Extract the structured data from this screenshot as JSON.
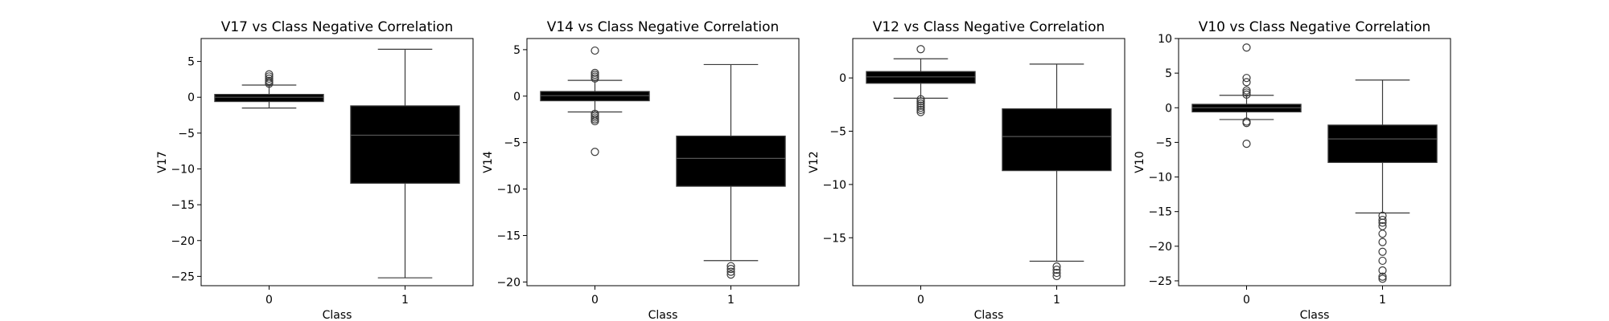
{
  "chart_data": [
    {
      "type": "box",
      "title": "V17 vs Class Negative Correlation",
      "xlabel": "Class",
      "ylabel": "V17",
      "categories": [
        "0",
        "1"
      ],
      "ylim": [
        -26.3,
        8.2
      ],
      "yticks": [
        5,
        0,
        -5,
        -10,
        -15,
        -20,
        -25
      ],
      "boxes": [
        {
          "category": "0",
          "whislo": -1.5,
          "q1": -0.6,
          "med": 0.0,
          "q3": 0.4,
          "whishi": 1.7,
          "fliers": [
            1.9,
            2.1,
            2.3,
            2.6,
            2.9,
            3.2
          ]
        },
        {
          "category": "1",
          "whislo": -25.2,
          "q1": -12.0,
          "med": -5.3,
          "q3": -1.2,
          "whishi": 6.7,
          "fliers": []
        }
      ]
    },
    {
      "type": "box",
      "title": "V14 vs Class Negative Correlation",
      "xlabel": "Class",
      "ylabel": "V14",
      "categories": [
        "0",
        "1"
      ],
      "ylim": [
        -20.4,
        6.2
      ],
      "yticks": [
        5,
        0,
        -5,
        -10,
        -15,
        -20
      ],
      "boxes": [
        {
          "category": "0",
          "whislo": -1.7,
          "q1": -0.5,
          "med": 0.05,
          "q3": 0.5,
          "whishi": 1.7,
          "fliers": [
            1.9,
            2.1,
            2.3,
            2.5,
            4.9,
            -1.9,
            -2.1,
            -2.3,
            -2.5,
            -2.7,
            -6.0
          ]
        },
        {
          "category": "1",
          "whislo": -17.7,
          "q1": -9.7,
          "med": -6.7,
          "q3": -4.3,
          "whishi": 3.4,
          "fliers": [
            -18.3,
            -18.6,
            -18.9,
            -19.2
          ]
        }
      ]
    },
    {
      "type": "box",
      "title": "V12 vs Class Negative Correlation",
      "xlabel": "Class",
      "ylabel": "V12",
      "categories": [
        "0",
        "1"
      ],
      "ylim": [
        -19.5,
        3.7
      ],
      "yticks": [
        0,
        -5,
        -10,
        -15
      ],
      "boxes": [
        {
          "category": "0",
          "whislo": -1.9,
          "q1": -0.5,
          "med": 0.1,
          "q3": 0.6,
          "whishi": 1.8,
          "fliers": [
            2.7,
            -2.0,
            -2.2,
            -2.4,
            -2.6,
            -2.8,
            -3.0,
            -3.2
          ]
        },
        {
          "category": "1",
          "whislo": -17.2,
          "q1": -8.7,
          "med": -5.5,
          "q3": -2.9,
          "whishi": 1.3,
          "fliers": [
            -17.7,
            -18.0,
            -18.3,
            -18.6
          ]
        }
      ]
    },
    {
      "type": "box",
      "title": "V10 vs Class Negative Correlation",
      "xlabel": "Class",
      "ylabel": "V10",
      "categories": [
        "0",
        "1"
      ],
      "ylim": [
        -25.7,
        10.0
      ],
      "yticks": [
        10,
        5,
        0,
        -5,
        -10,
        -15,
        -20,
        -25
      ],
      "boxes": [
        {
          "category": "0",
          "whislo": -1.7,
          "q1": -0.6,
          "med": 0.0,
          "q3": 0.5,
          "whishi": 1.8,
          "fliers": [
            1.9,
            2.2,
            2.5,
            3.7,
            4.3,
            8.7,
            -2.0,
            -2.2,
            -5.2
          ]
        },
        {
          "category": "1",
          "whislo": -15.2,
          "q1": -7.9,
          "med": -4.5,
          "q3": -2.5,
          "whishi": 4.0,
          "fliers": [
            -15.6,
            -16.2,
            -16.6,
            -17.1,
            -18.2,
            -19.4,
            -20.8,
            -22.1,
            -23.5,
            -24.4,
            -24.7
          ]
        }
      ]
    }
  ]
}
